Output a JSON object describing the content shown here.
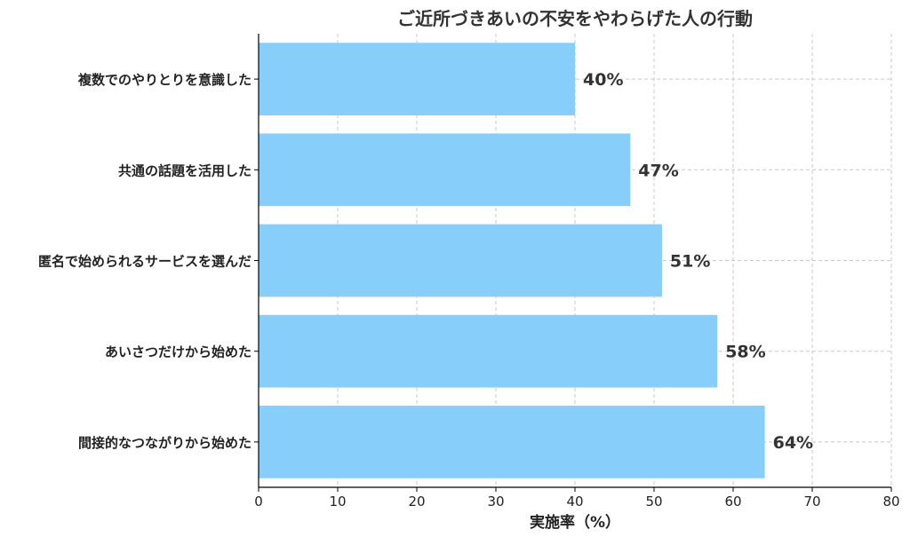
{
  "chart_data": {
    "type": "bar",
    "orientation": "horizontal",
    "title": "ご近所づきあいの不安をやわらげた人の行動",
    "xlabel": "実施率（%）",
    "ylabel": "",
    "categories": [
      "複数でのやりとりを意識した",
      "共通の話題を活用した",
      "匿名で始められるサービスを選んだ",
      "あいさつだけから始めた",
      "間接的なつながりから始めた"
    ],
    "values": [
      40,
      47,
      51,
      58,
      64
    ],
    "value_labels": [
      "40%",
      "47%",
      "51%",
      "58%",
      "64%"
    ],
    "xlim": [
      0,
      80
    ],
    "xticks": [
      0,
      10,
      20,
      30,
      40,
      50,
      60,
      70,
      80
    ],
    "xtick_labels": [
      "0",
      "10",
      "20",
      "30",
      "40",
      "50",
      "60",
      "70",
      "80"
    ],
    "grid": true,
    "bar_color": "#87CEFA"
  }
}
